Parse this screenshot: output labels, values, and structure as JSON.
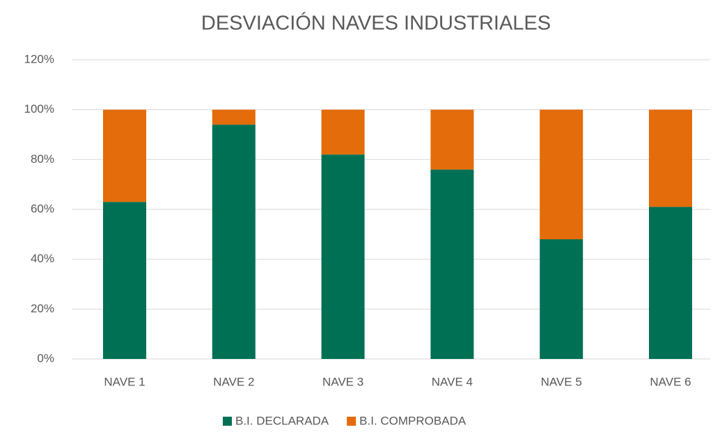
{
  "chart_data": {
    "type": "stacked_bar",
    "title": "DESVIACIÓN NAVES INDUSTRIALES",
    "categories": [
      "NAVE 1",
      "NAVE 2",
      "NAVE 3",
      "NAVE 4",
      "NAVE 5",
      "NAVE 6"
    ],
    "series": [
      {
        "name": "B.I. DECLARADA",
        "color": "#007054",
        "values": [
          63,
          94,
          82,
          76,
          48,
          61
        ]
      },
      {
        "name": "B.I. COMPROBADA",
        "color": "#e46c0a",
        "values": [
          37,
          6,
          18,
          24,
          52,
          39
        ]
      }
    ],
    "ylim": [
      0,
      120
    ],
    "yticks": [
      {
        "value": 0,
        "label": "0%"
      },
      {
        "value": 20,
        "label": "20%"
      },
      {
        "value": 40,
        "label": "40%"
      },
      {
        "value": 60,
        "label": "60%"
      },
      {
        "value": 80,
        "label": "80%"
      },
      {
        "value": 100,
        "label": "100%"
      },
      {
        "value": 120,
        "label": "120%"
      }
    ],
    "grid": true,
    "legend": "bottom"
  }
}
